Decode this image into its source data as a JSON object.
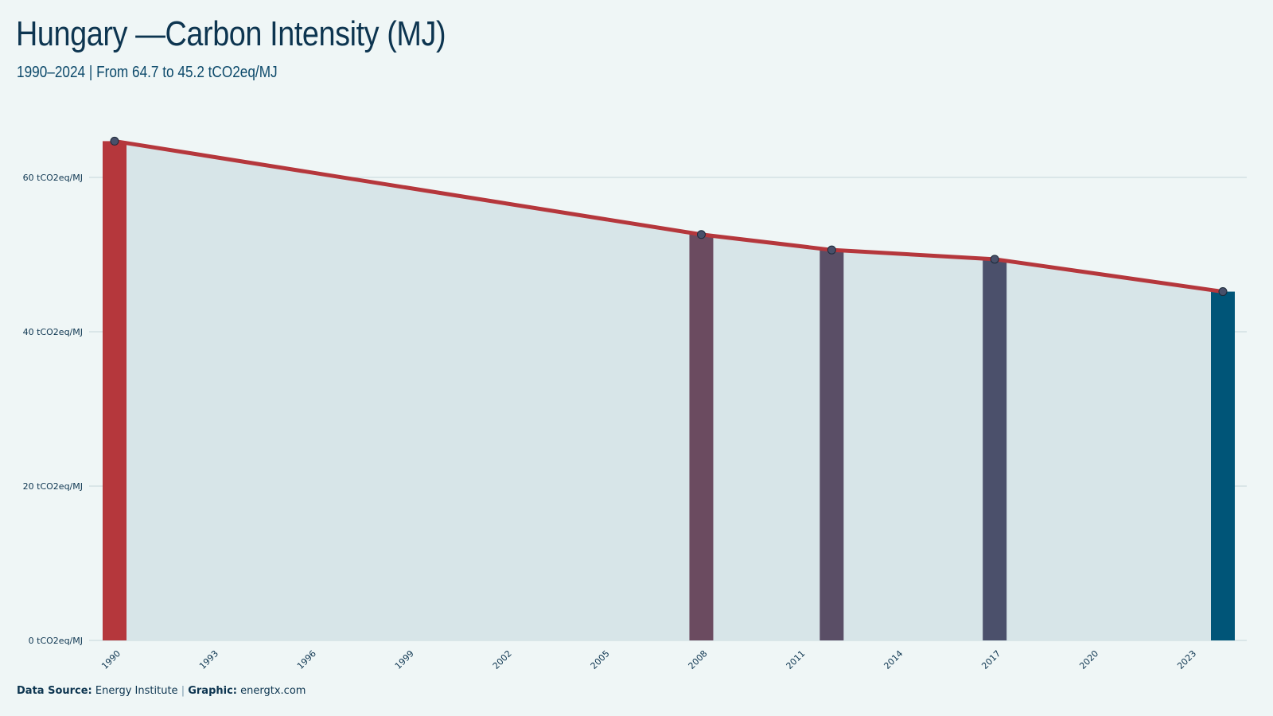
{
  "header": {
    "title": "Hungary —Carbon Intensity (MJ)",
    "subtitle": "1990–2024 | From 64.7 to 45.2 tCO2eq/MJ"
  },
  "footer": {
    "source_label": "Data Source:",
    "source_value": "Energy Institute",
    "separator": "|",
    "graphic_label": "Graphic:",
    "graphic_value": "energtx.com"
  },
  "colors": {
    "background": "#eff6f6",
    "area_fill": "#d7e5e8",
    "line": "#b5373c",
    "grid": "#c5d5da",
    "text": "#0d3550"
  },
  "chart_data": {
    "type": "area",
    "title": "Hungary —Carbon Intensity (MJ)",
    "subtitle": "1990–2024 | From 64.7 to 45.2 tCO2eq/MJ",
    "unit": "tCO2eq/MJ",
    "xlim": [
      1990,
      2024
    ],
    "ylim": [
      0,
      66
    ],
    "x_ticks": [
      1990,
      1993,
      1996,
      1999,
      2002,
      2005,
      2008,
      2011,
      2014,
      2017,
      2020,
      2023
    ],
    "y_ticks": [
      {
        "value": 0,
        "label": "0 tCO2eq/MJ"
      },
      {
        "value": 20,
        "label": "20 tCO2eq/MJ"
      },
      {
        "value": 40,
        "label": "40 tCO2eq/MJ"
      },
      {
        "value": 60,
        "label": "60 tCO2eq/MJ"
      }
    ],
    "grid": true,
    "points": [
      {
        "x": 1990,
        "y": 64.7
      },
      {
        "x": 2008,
        "y": 52.6
      },
      {
        "x": 2012,
        "y": 50.6
      },
      {
        "x": 2017,
        "y": 49.4
      },
      {
        "x": 2024,
        "y": 45.2
      }
    ],
    "bars": [
      {
        "x": 1990,
        "y": 64.7,
        "color": "#b5373c"
      },
      {
        "x": 2008,
        "y": 52.6,
        "color": "#6b4b60"
      },
      {
        "x": 2012,
        "y": 50.6,
        "color": "#5a4e66"
      },
      {
        "x": 2017,
        "y": 49.4,
        "color": "#4b506b"
      },
      {
        "x": 2024,
        "y": 45.2,
        "color": "#005578"
      }
    ]
  }
}
